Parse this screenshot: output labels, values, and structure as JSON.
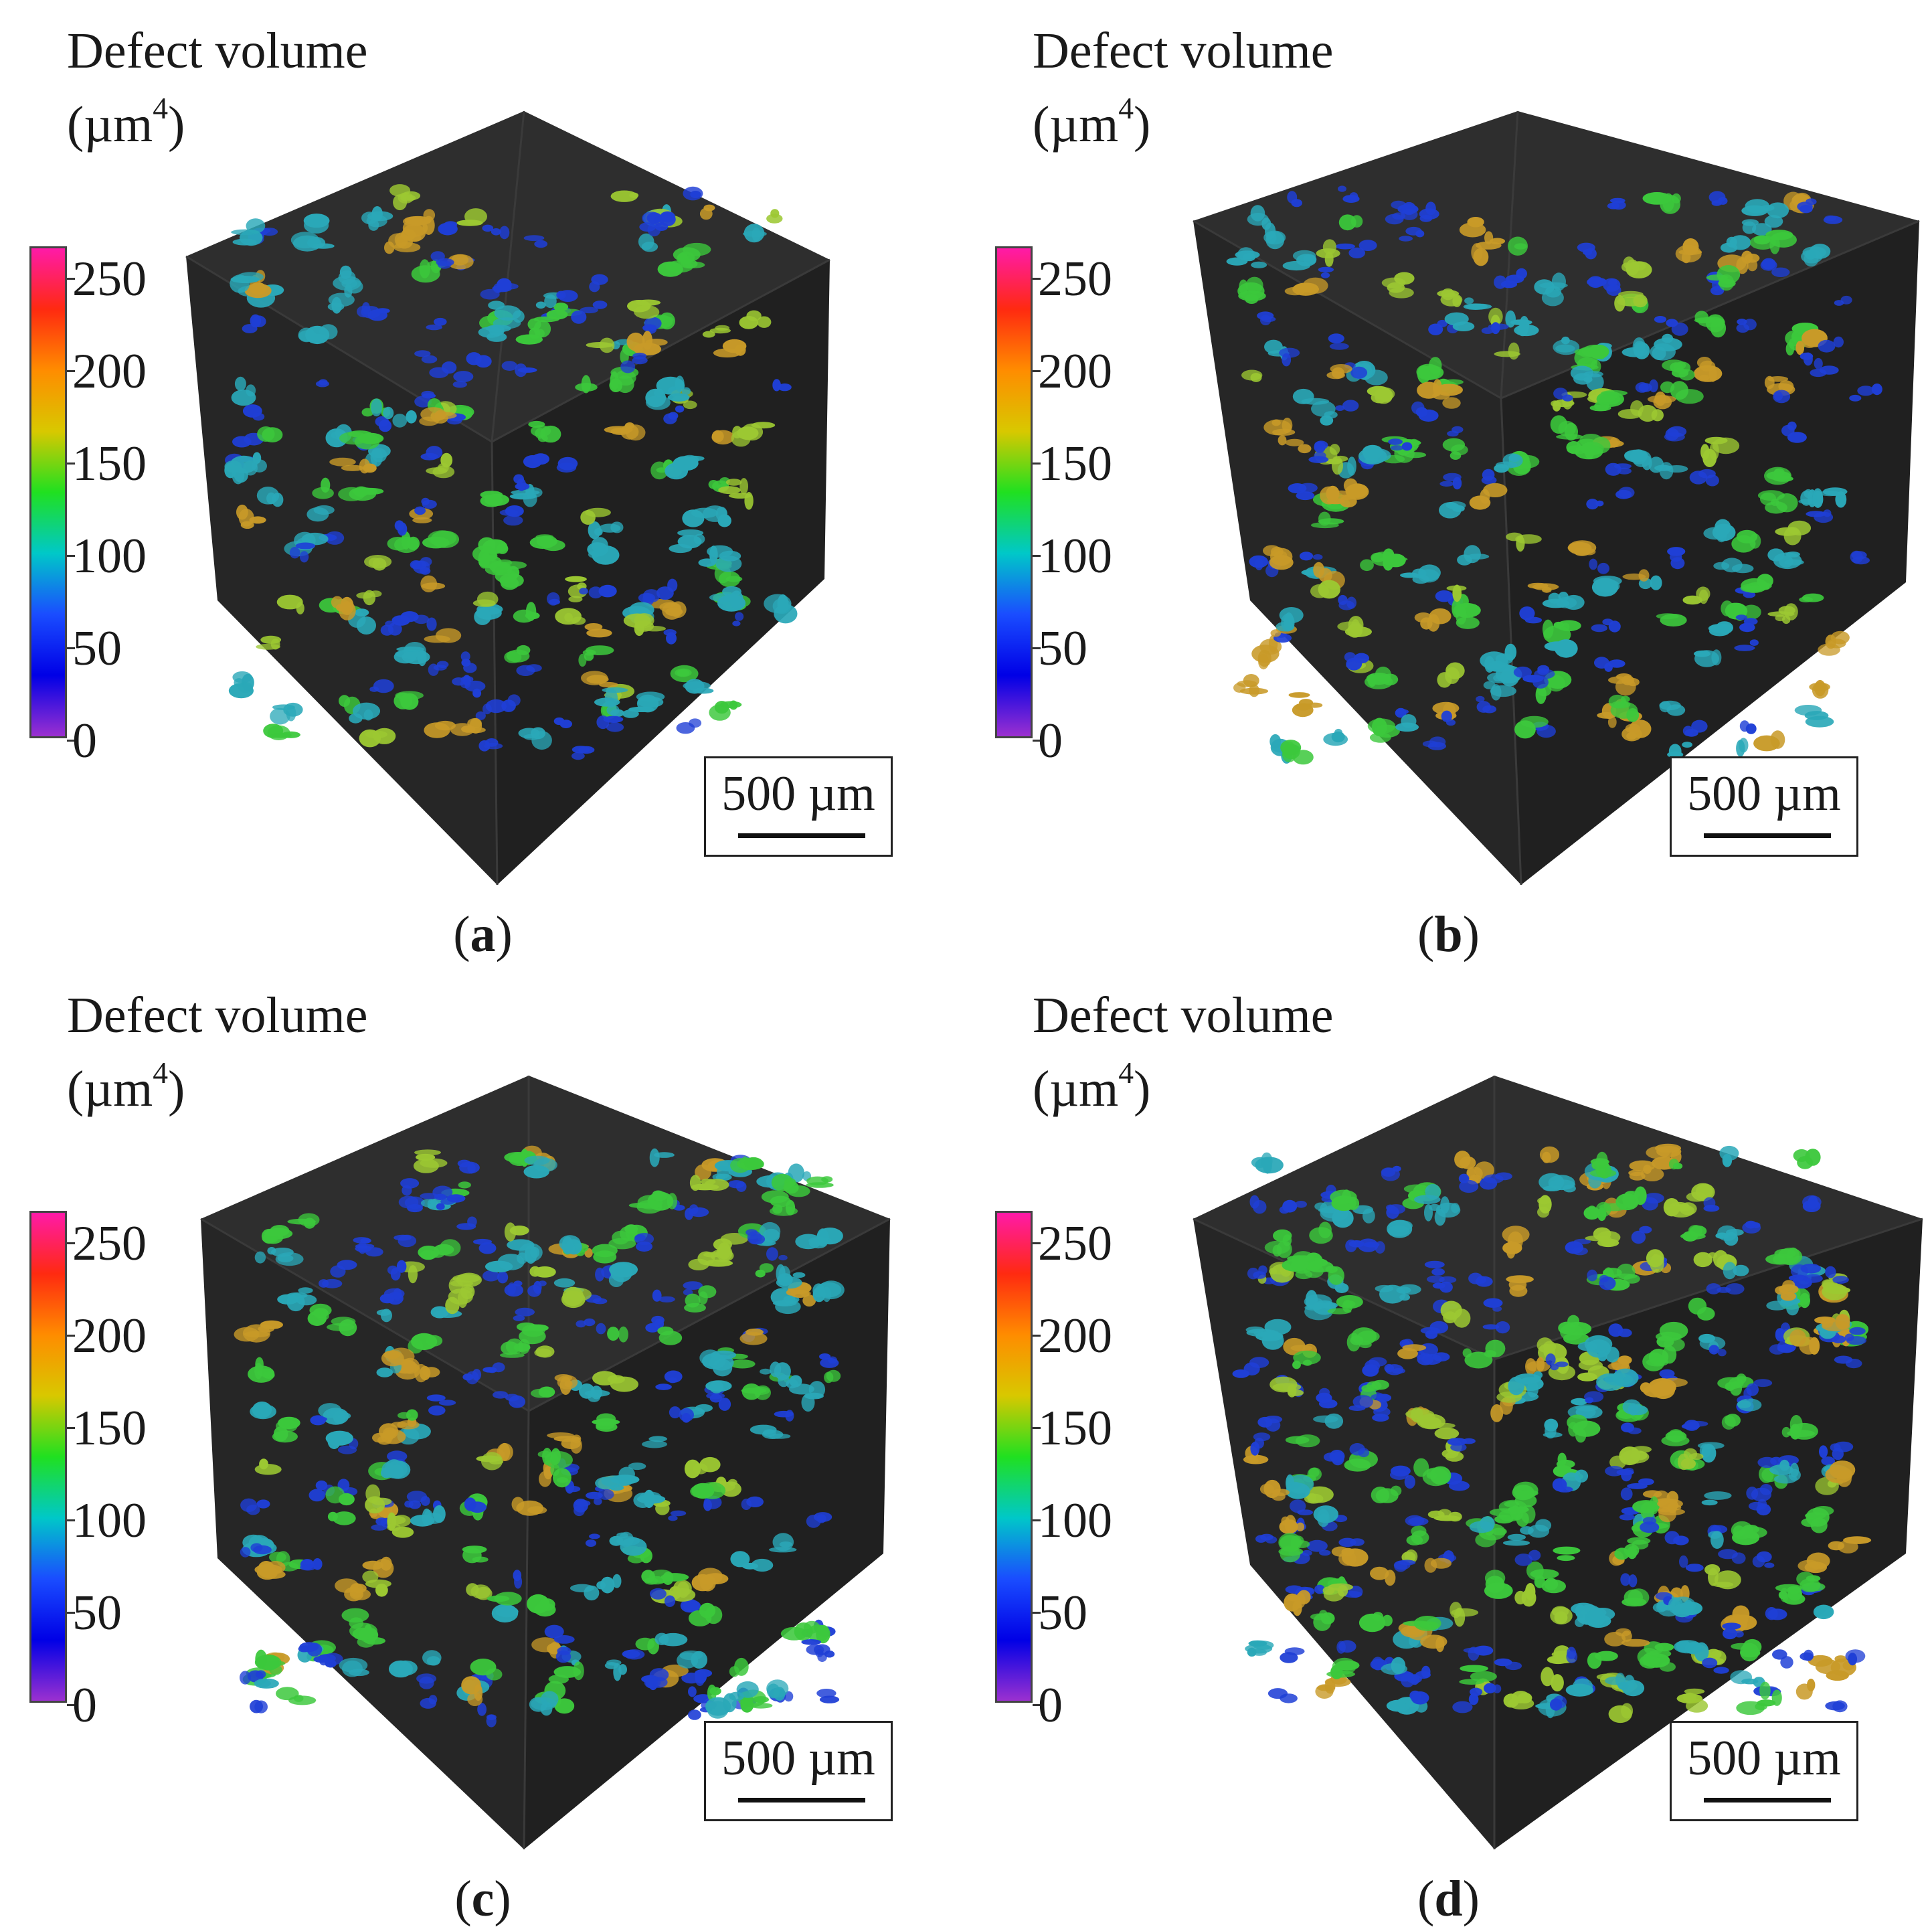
{
  "panels": [
    {
      "id": "a",
      "title_line1": "Defect volume",
      "unit_prefix": "(µm",
      "unit_exp": "4",
      "unit_suffix": ")",
      "ticks": [
        "250",
        "200",
        "150",
        "100",
        "50",
        "0"
      ],
      "scale_label": "500 µm",
      "caption_open": "(",
      "caption_letter": "a",
      "caption_close": ")"
    },
    {
      "id": "b",
      "title_line1": "Defect volume",
      "unit_prefix": "(µm",
      "unit_exp": "4",
      "unit_suffix": ")",
      "ticks": [
        "250",
        "200",
        "150",
        "100",
        "50",
        "0"
      ],
      "scale_label": "500 µm",
      "caption_open": "(",
      "caption_letter": "b",
      "caption_close": ")"
    },
    {
      "id": "c",
      "title_line1": "Defect volume",
      "unit_prefix": "(µm",
      "unit_exp": "4",
      "unit_suffix": ")",
      "ticks": [
        "250",
        "200",
        "150",
        "100",
        "50",
        "0"
      ],
      "scale_label": "500 µm",
      "caption_open": "(",
      "caption_letter": "c",
      "caption_close": ")"
    },
    {
      "id": "d",
      "title_line1": "Defect volume",
      "unit_prefix": "(µm",
      "unit_exp": "4",
      "unit_suffix": ")",
      "ticks": [
        "250",
        "200",
        "150",
        "100",
        "50",
        "0"
      ],
      "scale_label": "500 µm",
      "caption_open": "(",
      "caption_letter": "d",
      "caption_close": ")"
    }
  ],
  "colorbar_colors": [
    "#ff1aa8",
    "#ff2a10",
    "#ff8c00",
    "#d8c800",
    "#20e020",
    "#00c8c8",
    "#1a4dff",
    "#0000e6",
    "#9b30d0"
  ],
  "defect_colors": {
    "low": "#1f3fd6",
    "cyan": "#2aa8b8",
    "green": "#3cc83c",
    "yellowgreen": "#9cc832",
    "orange": "#c89a28"
  },
  "cube_colors": {
    "top": "#2e2e2e",
    "left": "#262626",
    "right": "#202020",
    "edge": "#3a3a3a"
  }
}
